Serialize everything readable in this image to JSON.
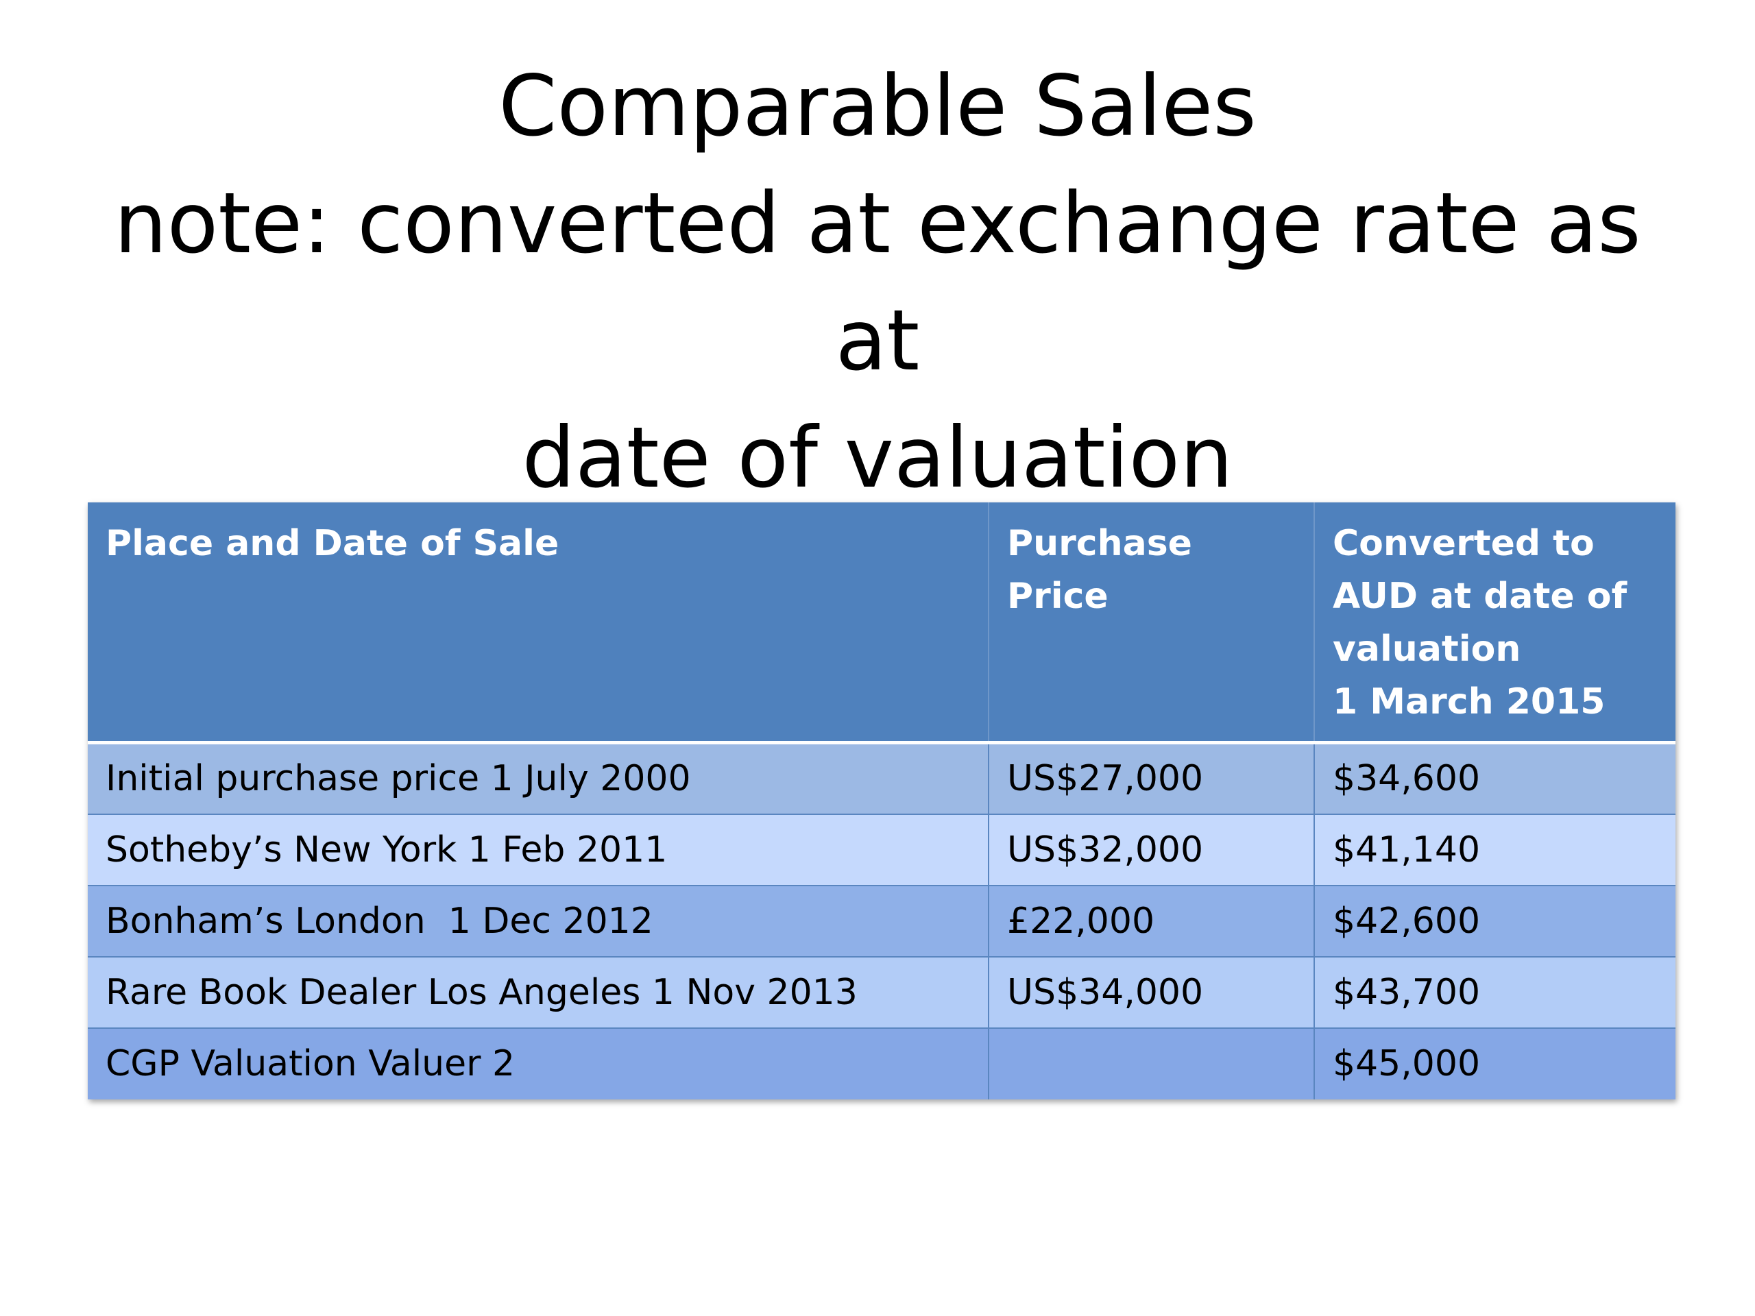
{
  "slide": {
    "title_lines": [
      "Comparable Sales",
      "note: converted at exchange rate as at",
      "date of valuation"
    ]
  },
  "table": {
    "headers": [
      "Place and Date of Sale",
      "Purchase Price",
      "Converted to\nAUD at date of\nvaluation\n1 March 2015"
    ],
    "rows": [
      {
        "place": "Initial purchase price 1 July 2000",
        "price": "US$27,000",
        "aud": "$34,600"
      },
      {
        "place": "Sotheby’s New York 1 Feb 2011",
        "price": "US$32,000",
        "aud": "$41,140"
      },
      {
        "place": "Bonham’s London  1 Dec 2012",
        "price": "£22,000",
        "aud": "$42,600"
      },
      {
        "place": "Rare Book Dealer Los Angeles 1 Nov 2013",
        "price": "US$34,000",
        "aud": "$43,700"
      },
      {
        "place": "CGP Valuation Valuer 2",
        "price": "",
        "aud": "$45,000"
      }
    ],
    "colors": {
      "header_bg": "#4f81bd",
      "header_text": "#ffffff",
      "row_colors": [
        "#9cb9e4",
        "#c5d9fd",
        "#8fb0e8",
        "#b2ccf7",
        "#85a7e6"
      ]
    }
  }
}
